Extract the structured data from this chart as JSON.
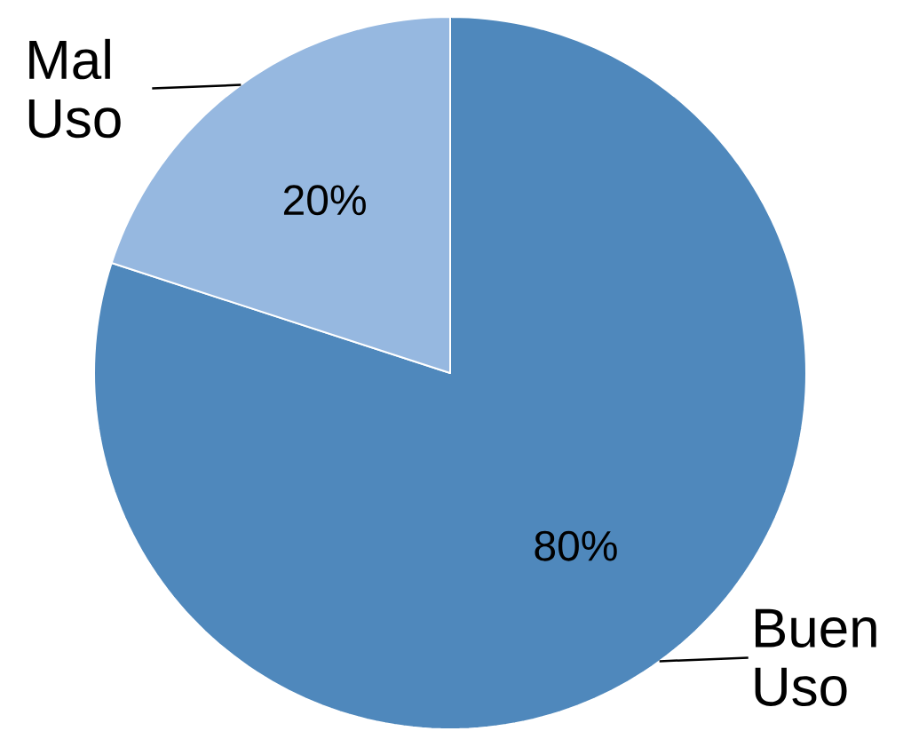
{
  "chart_data": {
    "type": "pie",
    "categories": [
      "Buen Uso",
      "Mal Uso"
    ],
    "values": [
      80,
      20
    ],
    "colors": [
      "#4f88bc",
      "#96b8e0"
    ],
    "value_labels": [
      "80%",
      "20%"
    ]
  }
}
